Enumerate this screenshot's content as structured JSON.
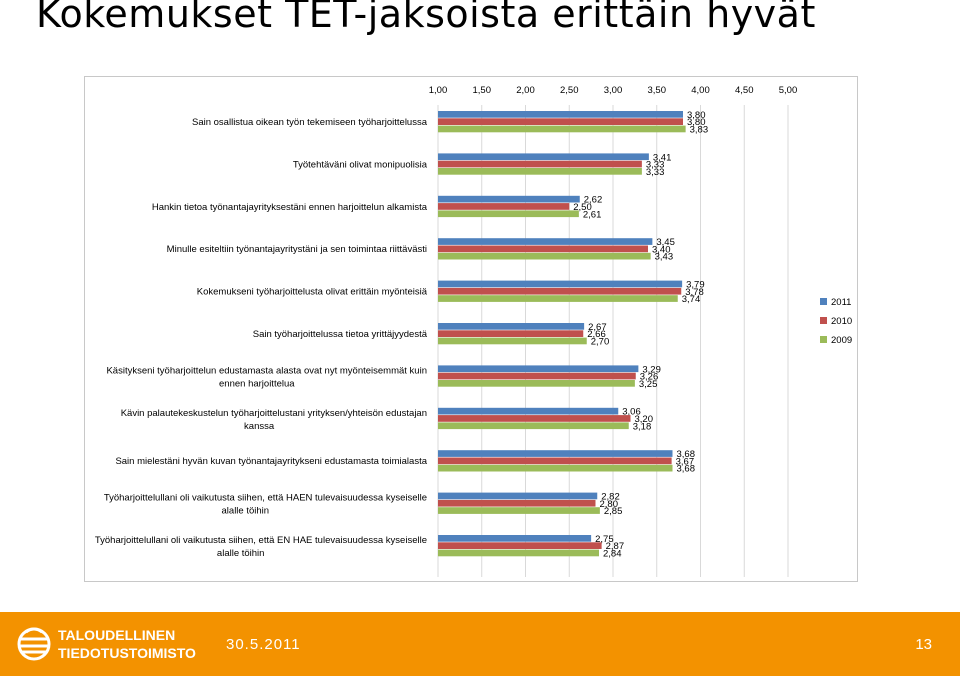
{
  "slide": {
    "title": "Kokemukset TET-jaksoista erittäin hyvät"
  },
  "footer": {
    "logo_line1": "TALOUDELLINEN",
    "logo_line2": "TIEDOTUSTOIMISTO",
    "date": "30.5.2011",
    "page": "13",
    "color": "#f39200"
  },
  "chart_data": {
    "type": "bar",
    "orientation": "horizontal",
    "xlim": [
      1.0,
      5.0
    ],
    "tick_labels": [
      "1,00",
      "1,50",
      "2,00",
      "2,50",
      "3,00",
      "3,50",
      "4,00",
      "4,50",
      "5,00"
    ],
    "ticks": [
      1.0,
      1.5,
      2.0,
      2.5,
      3.0,
      3.5,
      4.0,
      4.5,
      5.0
    ],
    "grid": true,
    "legend_position": "right",
    "categories": [
      [
        "Sain osallistua oikean työn tekemiseen työharjoittelussa"
      ],
      [
        "Työtehtäväni olivat monipuolisia"
      ],
      [
        "Hankin tietoa työnantajayrityksestäni ennen harjoittelun alkamista"
      ],
      [
        "Minulle esiteltiin työnantajayritystäni ja sen toimintaa riittävästi"
      ],
      [
        "Kokemukseni työharjoittelusta olivat erittäin myönteisiä"
      ],
      [
        "Sain työharjoittelussa tietoa yrittäjyydestä"
      ],
      [
        "Käsitykseni työharjoittelun edustamasta alasta ovat nyt myönteisemmät kuin",
        "ennen harjoittelua"
      ],
      [
        "Kävin palautekeskustelun työharjoittelustani yrityksen/yhteisön edustajan",
        "kanssa"
      ],
      [
        "Sain mielestäni hyvän kuvan työnantajayritykseni edustamasta toimialasta"
      ],
      [
        "Työharjoittelullani oli vaikutusta siihen, että HAEN tulevaisuudessa kyseiselle",
        "alalle töihin"
      ],
      [
        "Työharjoittelullani oli vaikutusta siihen, että EN HAE tulevaisuudessa kyseiselle",
        "alalle töihin"
      ]
    ],
    "series": [
      {
        "name": "2011",
        "color": "#4f81bd",
        "values": [
          3.8,
          3.41,
          2.62,
          3.45,
          3.79,
          2.67,
          3.29,
          3.06,
          3.68,
          2.82,
          2.75
        ],
        "labels": [
          "3,80",
          "3,41",
          "2,62",
          "3,45",
          "3,79",
          "2,67",
          "3,29",
          "3,06",
          "3,68",
          "2,82",
          "2,75"
        ]
      },
      {
        "name": "2010",
        "color": "#c0504d",
        "values": [
          3.8,
          3.33,
          2.5,
          3.4,
          3.78,
          2.66,
          3.26,
          3.2,
          3.67,
          2.8,
          2.87
        ],
        "labels": [
          "3,80",
          "3,33",
          "2,50",
          "3,40",
          "3,78",
          "2,66",
          "3,26",
          "3,20",
          "3,67",
          "2,80",
          "2,87"
        ]
      },
      {
        "name": "2009",
        "color": "#9bbb59",
        "values": [
          3.83,
          3.33,
          2.61,
          3.43,
          3.74,
          2.7,
          3.25,
          3.18,
          3.68,
          2.85,
          2.84
        ],
        "labels": [
          "3,83",
          "3,33",
          "2,61",
          "3,43",
          "3,74",
          "2,70",
          "3,25",
          "3,18",
          "3,68",
          "2,85",
          "2,84"
        ]
      }
    ]
  }
}
